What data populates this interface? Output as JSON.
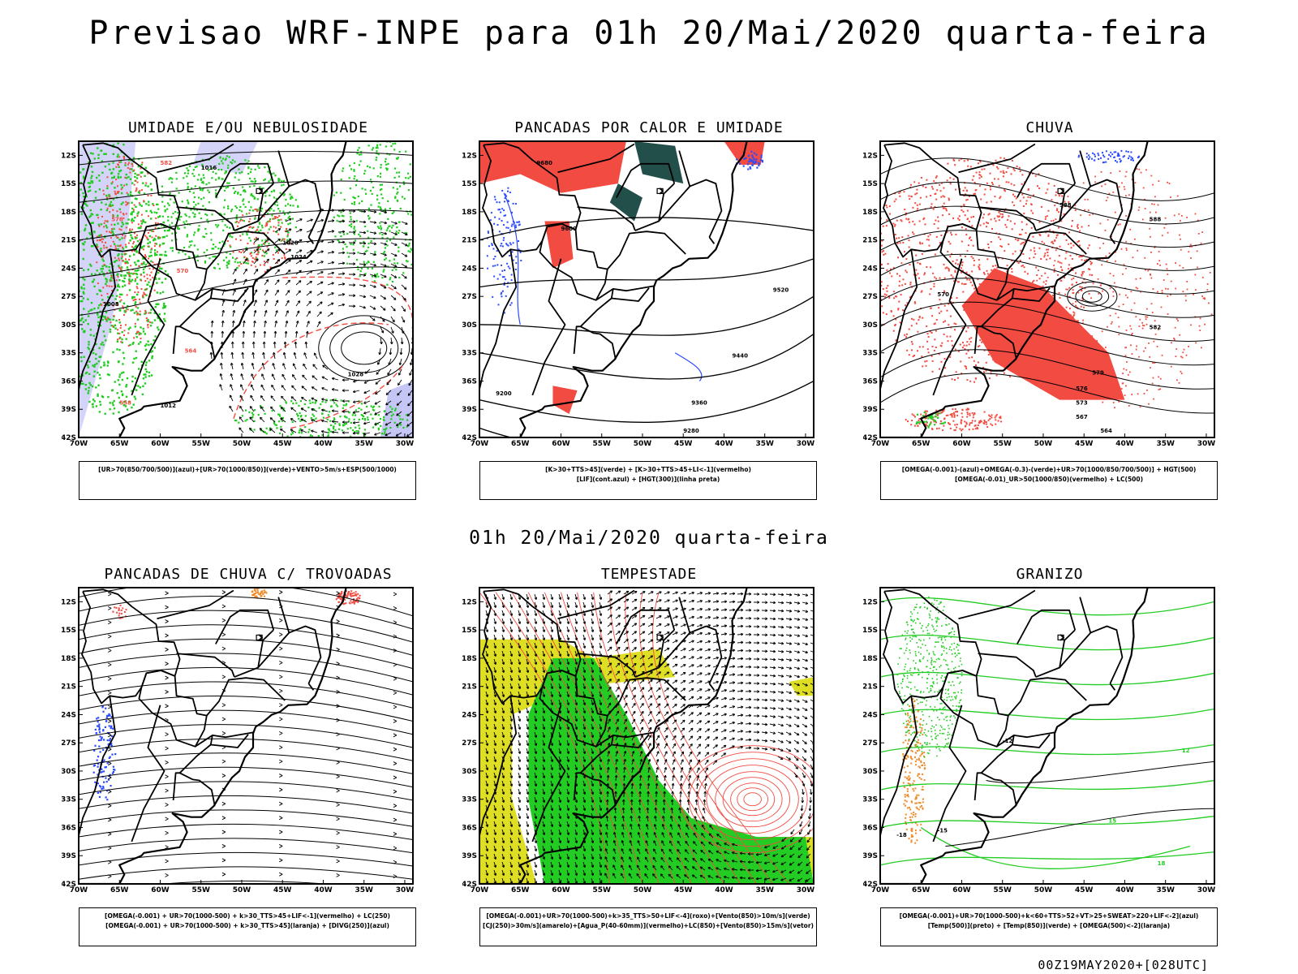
{
  "page": {
    "title": "Previsao WRF-INPE  para 01h 20/Mai/2020 quarta-feira",
    "subtitle": "01h 20/Mai/2020 quarta-feira",
    "footer": "00Z19MAY2020+[028UTC]"
  },
  "axes": {
    "lat_labels": [
      "12S",
      "15S",
      "18S",
      "21S",
      "24S",
      "27S",
      "30S",
      "33S",
      "36S",
      "39S",
      "42S"
    ],
    "lon_labels": [
      "70W",
      "65W",
      "60W",
      "55W",
      "50W",
      "45W",
      "40W",
      "35W",
      "30W"
    ]
  },
  "panels": [
    {
      "id": "umidade",
      "title": "UMIDADE E/OU NEBULOSIDADE",
      "legend": [
        "[UR>70(850/700/500)](azul)+[UR>70(1000/850)](verde)+VENTO>5m/s+ESP(500/1000)"
      ],
      "contour_labels": [
        "1016",
        "1020",
        "1024",
        "1028",
        "1012",
        "1008",
        "570",
        "576",
        "582",
        "564",
        "558"
      ]
    },
    {
      "id": "pancadas-calor",
      "title": "PANCADAS POR CALOR E UMIDADE",
      "legend": [
        "[K>30+TTS>45](verde) + [K>30+TTS>45+LI<-1](vermelho)",
        "[LIF](cont.azul) + [HGT(300)](linha preta)"
      ],
      "contour_labels": [
        "9680",
        "9600",
        "9520",
        "9440",
        "9360",
        "9280",
        "9200"
      ]
    },
    {
      "id": "chuva",
      "title": "CHUVA",
      "legend": [
        "[OMEGA(-0.001)-(azul)+OMEGA(-0.3)-(verde)+UR>70(1000/850/700/500)] + HGT(500)",
        "[OMEGA(-0.01)_UR>50(1000/850)(vermelho) + LC(500)"
      ],
      "contour_labels": [
        "588",
        "582",
        "579",
        "576",
        "573",
        "570",
        "567",
        "564"
      ]
    },
    {
      "id": "trovoadas",
      "title": "PANCADAS DE CHUVA C/ TROVOADAS",
      "legend": [
        "[OMEGA(-0.001) + UR>70(1000-500) + k>30_TTS>45+LIF<-1](vermelho) + LC(250)",
        "[OMEGA(-0.001) + UR>70(1000-500) + k>30_TTS>45](laranja) + [DIVG(250)](azul)"
      ],
      "contour_labels": []
    },
    {
      "id": "tempestade",
      "title": "TEMPESTADE",
      "legend": [
        "[OMEGA(-0.001)+UR>70(1000-500)+k>35_TTS>50+LIF<-4](roxo)+[Vento(850)>10m/s](verde)",
        "[CJ(250)>30m/s](amarelo)+[Agua_P(40-60mm)](vermelho)+LC(850)+[Vento(850)>15m/s](vetor)"
      ],
      "contour_labels": []
    },
    {
      "id": "granizo",
      "title": "GRANIZO",
      "legend": [
        "[OMEGA(-0.001)+UR>70(1000-500)+k<60+TTS>52+VT>25+SWEAT>220+LIF<-2](azul)",
        "[Temp(500)](preto) + [Temp(850)](verde) + [OMEGA(500)<-2](laranja)"
      ],
      "contour_labels": [
        "-12",
        "-15",
        "-18",
        "12",
        "15",
        "18"
      ]
    }
  ],
  "colors": {
    "red": "#f24b41",
    "green": "#22cc22",
    "blue": "#2a4bff",
    "lavender": "#b8b8f4",
    "yellow": "#dede25",
    "darkteal": "#234f4b",
    "orange": "#ee8a2a"
  }
}
